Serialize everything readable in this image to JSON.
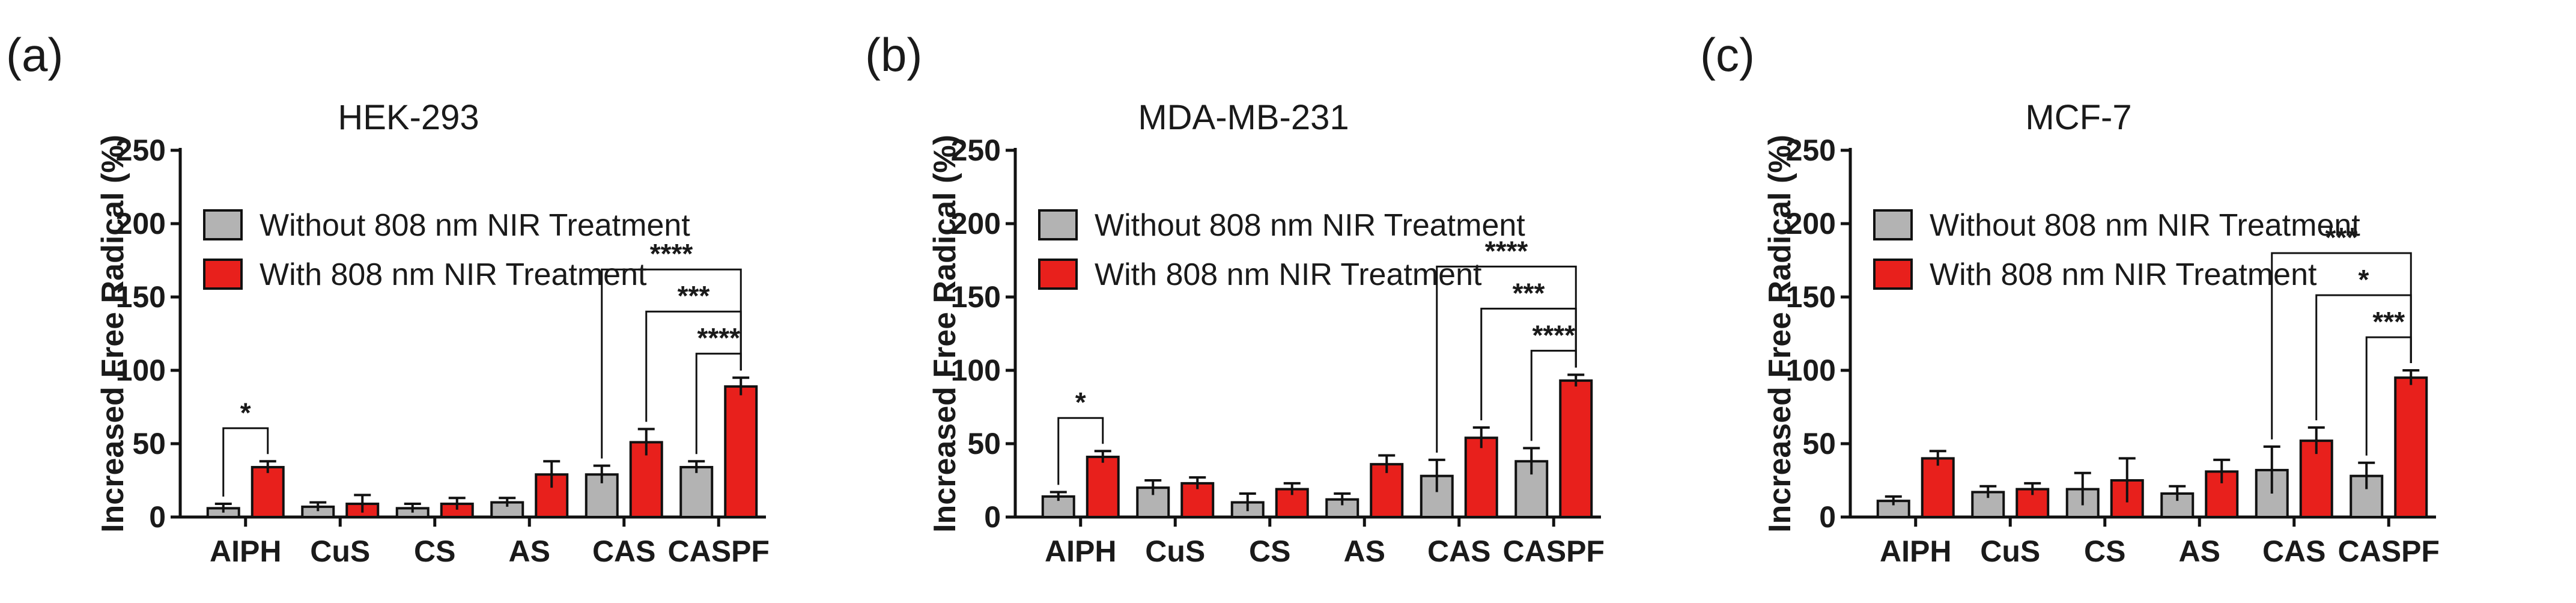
{
  "chart_data": [
    {
      "type": "bar",
      "panel_label": "(a)",
      "title": "HEK-293",
      "ylabel": "Increased Free Radical (%)",
      "xlabel": "",
      "ylim": [
        0,
        250
      ],
      "yticks": [
        0,
        50,
        100,
        150,
        200,
        250
      ],
      "categories": [
        "AIPH",
        "CuS",
        "CS",
        "AS",
        "CAS",
        "CASPF"
      ],
      "series": [
        {
          "name": "Without 808 nm NIR Treatment",
          "color": "#b3b3b3",
          "values": [
            6,
            7,
            6,
            10,
            29,
            34
          ],
          "errors": [
            3,
            3,
            3,
            3,
            6,
            4
          ]
        },
        {
          "name": "With 808 nm NIR Treatment",
          "color": "#e8201c",
          "values": [
            34,
            9,
            9,
            29,
            51,
            89
          ],
          "errors": [
            4,
            6,
            4,
            9,
            9,
            6
          ]
        }
      ],
      "significance": [
        {
          "from": [
            0,
            0
          ],
          "to": [
            0,
            1
          ],
          "label": "*"
        },
        {
          "from": [
            4,
            0
          ],
          "to": [
            5,
            1
          ],
          "label": "****"
        },
        {
          "from": [
            4,
            1
          ],
          "to": [
            5,
            1
          ],
          "label": "***"
        },
        {
          "from": [
            5,
            0
          ],
          "to": [
            5,
            1
          ],
          "label": "****"
        }
      ]
    },
    {
      "type": "bar",
      "panel_label": "(b)",
      "title": "MDA-MB-231",
      "ylabel": "Increased Free Radical (%)",
      "xlabel": "",
      "ylim": [
        0,
        250
      ],
      "yticks": [
        0,
        50,
        100,
        150,
        200,
        250
      ],
      "categories": [
        "AIPH",
        "CuS",
        "CS",
        "AS",
        "CAS",
        "CASPF"
      ],
      "series": [
        {
          "name": "Without 808 nm NIR Treatment",
          "color": "#b3b3b3",
          "values": [
            14,
            20,
            10,
            12,
            28,
            38
          ],
          "errors": [
            3,
            5,
            6,
            4,
            11,
            9
          ]
        },
        {
          "name": "With 808 nm NIR Treatment",
          "color": "#e8201c",
          "values": [
            41,
            23,
            19,
            36,
            54,
            93
          ],
          "errors": [
            4,
            4,
            4,
            6,
            7,
            4
          ]
        }
      ],
      "significance": [
        {
          "from": [
            0,
            0
          ],
          "to": [
            0,
            1
          ],
          "label": "*"
        },
        {
          "from": [
            4,
            0
          ],
          "to": [
            5,
            1
          ],
          "label": "****"
        },
        {
          "from": [
            4,
            1
          ],
          "to": [
            5,
            1
          ],
          "label": "***"
        },
        {
          "from": [
            5,
            0
          ],
          "to": [
            5,
            1
          ],
          "label": "****"
        }
      ]
    },
    {
      "type": "bar",
      "panel_label": "(c)",
      "title": "MCF-7",
      "ylabel": "Increased Free Radical (%)",
      "xlabel": "",
      "ylim": [
        0,
        250
      ],
      "yticks": [
        0,
        50,
        100,
        150,
        200,
        250
      ],
      "categories": [
        "AIPH",
        "CuS",
        "CS",
        "AS",
        "CAS",
        "CASPF"
      ],
      "series": [
        {
          "name": "Without 808 nm NIR Treatment",
          "color": "#b3b3b3",
          "values": [
            11,
            17,
            19,
            16,
            32,
            28
          ],
          "errors": [
            3,
            4,
            11,
            5,
            16,
            9
          ]
        },
        {
          "name": "With 808 nm NIR Treatment",
          "color": "#e8201c",
          "values": [
            40,
            19,
            25,
            31,
            52,
            95
          ],
          "errors": [
            5,
            4,
            15,
            8,
            9,
            5
          ]
        }
      ],
      "significance": [
        {
          "from": [
            4,
            0
          ],
          "to": [
            5,
            1
          ],
          "label": "***"
        },
        {
          "from": [
            4,
            1
          ],
          "to": [
            5,
            1
          ],
          "label": "*"
        },
        {
          "from": [
            5,
            0
          ],
          "to": [
            5,
            1
          ],
          "label": "***"
        }
      ]
    }
  ]
}
